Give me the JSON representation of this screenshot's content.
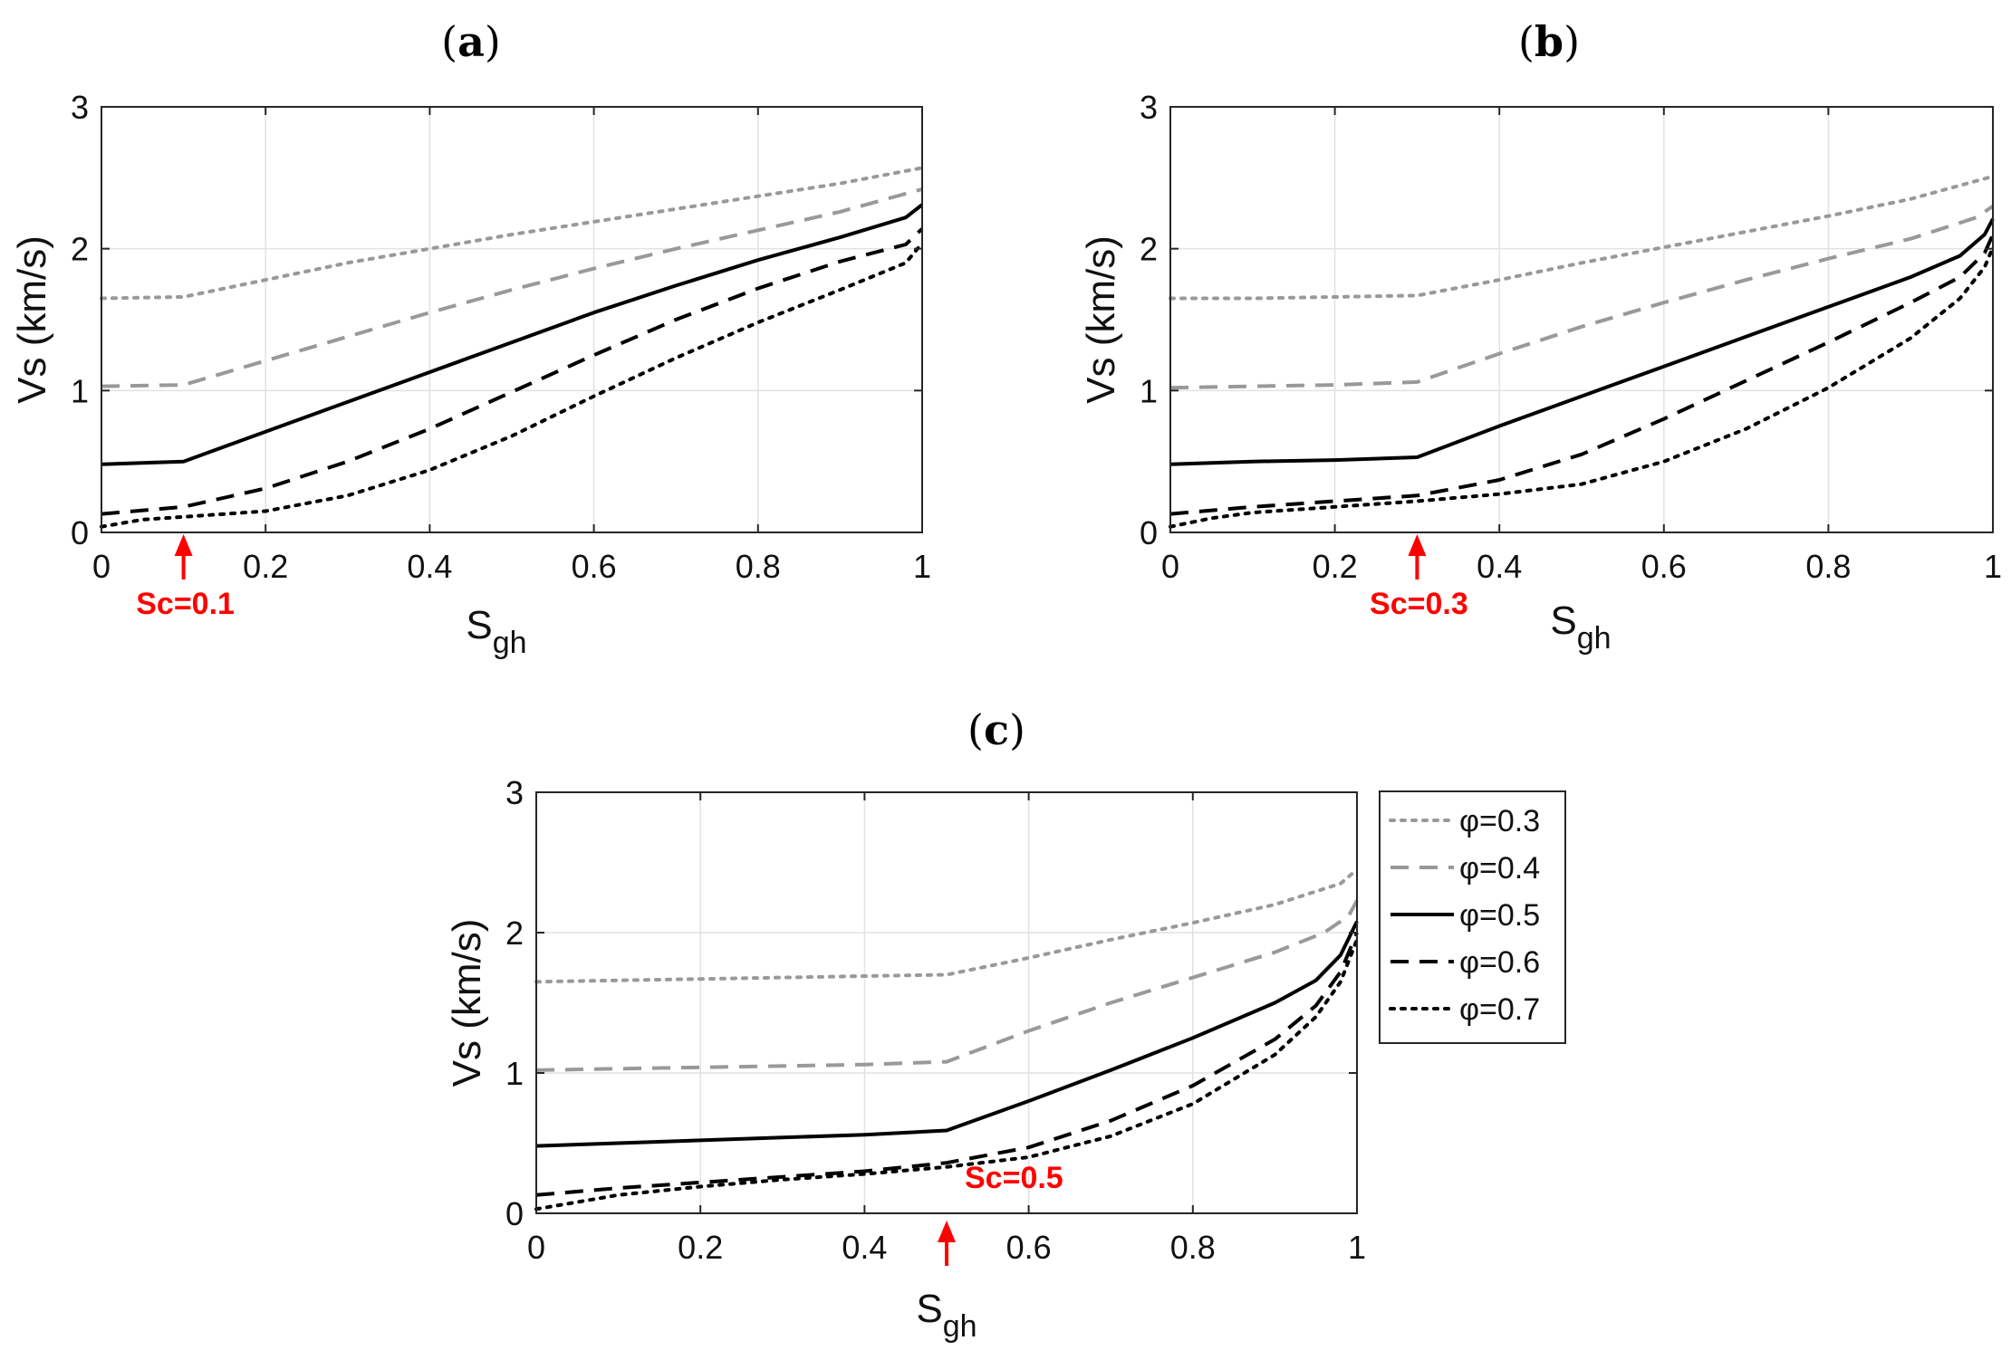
{
  "legend": {
    "entries": [
      {
        "label": "φ=0.3",
        "color": "#999999",
        "dash": "dot"
      },
      {
        "label": "φ=0.4",
        "color": "#999999",
        "dash": "dash"
      },
      {
        "label": "φ=0.5",
        "color": "#000000",
        "dash": "solid"
      },
      {
        "label": "φ=0.6",
        "color": "#000000",
        "dash": "dash"
      },
      {
        "label": "φ=0.7",
        "color": "#000000",
        "dash": "dot"
      }
    ]
  },
  "chart_data": [
    {
      "type": "line",
      "panel": "(a)",
      "panel_letter": "a",
      "xlabel_main": "S",
      "xlabel_sub": "gh",
      "ylabel": "Vs (km/s)",
      "xlim": [
        0,
        1
      ],
      "ylim": [
        0,
        3
      ],
      "xticks": [
        "0",
        "0.2",
        "0.4",
        "0.6",
        "0.8",
        "1"
      ],
      "xtick_values": [
        0,
        0.2,
        0.4,
        0.6,
        0.8,
        1
      ],
      "yticks": [
        "0",
        "1",
        "2",
        "3"
      ],
      "ytick_values": [
        0,
        1,
        2,
        3
      ],
      "grid": true,
      "annotation": {
        "text": "Sc=0.1",
        "x": 0.1
      },
      "series": [
        {
          "name": "φ=0.3",
          "x": [
            0,
            0.1,
            0.2,
            0.3,
            0.4,
            0.5,
            0.6,
            0.7,
            0.8,
            0.9,
            1.0
          ],
          "y": [
            1.65,
            1.66,
            1.78,
            1.9,
            2.0,
            2.1,
            2.19,
            2.28,
            2.37,
            2.46,
            2.57
          ]
        },
        {
          "name": "φ=0.4",
          "x": [
            0,
            0.1,
            0.2,
            0.3,
            0.4,
            0.5,
            0.6,
            0.7,
            0.8,
            0.9,
            1.0
          ],
          "y": [
            1.03,
            1.04,
            1.21,
            1.38,
            1.55,
            1.71,
            1.86,
            2.0,
            2.13,
            2.26,
            2.42
          ]
        },
        {
          "name": "φ=0.5",
          "x": [
            0,
            0.1,
            0.2,
            0.3,
            0.4,
            0.5,
            0.6,
            0.7,
            0.8,
            0.9,
            0.98,
            1.0
          ],
          "y": [
            0.48,
            0.5,
            0.71,
            0.92,
            1.13,
            1.34,
            1.55,
            1.74,
            1.92,
            2.08,
            2.22,
            2.31
          ]
        },
        {
          "name": "φ=0.6",
          "x": [
            0,
            0.1,
            0.2,
            0.3,
            0.4,
            0.5,
            0.6,
            0.7,
            0.8,
            0.9,
            0.98,
            1.0
          ],
          "y": [
            0.13,
            0.18,
            0.31,
            0.5,
            0.73,
            0.99,
            1.25,
            1.5,
            1.72,
            1.91,
            2.03,
            2.14
          ]
        },
        {
          "name": "φ=0.7",
          "x": [
            0,
            0.05,
            0.1,
            0.2,
            0.3,
            0.4,
            0.5,
            0.6,
            0.7,
            0.8,
            0.9,
            0.98,
            1.0
          ],
          "y": [
            0.04,
            0.09,
            0.11,
            0.15,
            0.26,
            0.44,
            0.68,
            0.96,
            1.23,
            1.48,
            1.71,
            1.9,
            2.04
          ]
        }
      ]
    },
    {
      "type": "line",
      "panel": "(b)",
      "panel_letter": "b",
      "xlabel_main": "S",
      "xlabel_sub": "gh",
      "ylabel": "Vs (km/s)",
      "xlim": [
        0,
        1
      ],
      "ylim": [
        0,
        3
      ],
      "xticks": [
        "0",
        "0.2",
        "0.4",
        "0.6",
        "0.8",
        "1"
      ],
      "xtick_values": [
        0,
        0.2,
        0.4,
        0.6,
        0.8,
        1
      ],
      "yticks": [
        "0",
        "1",
        "2",
        "3"
      ],
      "ytick_values": [
        0,
        1,
        2,
        3
      ],
      "grid": true,
      "annotation": {
        "text": "Sc=0.3",
        "x": 0.3
      },
      "series": [
        {
          "name": "φ=0.3",
          "x": [
            0,
            0.1,
            0.2,
            0.3,
            0.4,
            0.5,
            0.6,
            0.7,
            0.8,
            0.9,
            1.0
          ],
          "y": [
            1.65,
            1.65,
            1.66,
            1.67,
            1.78,
            1.9,
            2.01,
            2.12,
            2.23,
            2.35,
            2.51
          ]
        },
        {
          "name": "φ=0.4",
          "x": [
            0,
            0.1,
            0.2,
            0.3,
            0.4,
            0.5,
            0.6,
            0.7,
            0.8,
            0.9,
            0.98,
            1.0
          ],
          "y": [
            1.02,
            1.03,
            1.04,
            1.06,
            1.26,
            1.45,
            1.62,
            1.78,
            1.93,
            2.07,
            2.22,
            2.3
          ]
        },
        {
          "name": "φ=0.5",
          "x": [
            0,
            0.1,
            0.2,
            0.3,
            0.4,
            0.5,
            0.6,
            0.7,
            0.8,
            0.9,
            0.96,
            0.99,
            1.0
          ],
          "y": [
            0.48,
            0.5,
            0.51,
            0.53,
            0.75,
            0.96,
            1.17,
            1.38,
            1.59,
            1.8,
            1.95,
            2.1,
            2.21
          ]
        },
        {
          "name": "φ=0.6",
          "x": [
            0,
            0.1,
            0.2,
            0.3,
            0.4,
            0.5,
            0.6,
            0.7,
            0.8,
            0.9,
            0.96,
            0.99,
            1.0
          ],
          "y": [
            0.13,
            0.18,
            0.22,
            0.26,
            0.37,
            0.55,
            0.8,
            1.07,
            1.34,
            1.62,
            1.8,
            1.97,
            2.1
          ]
        },
        {
          "name": "φ=0.7",
          "x": [
            0,
            0.05,
            0.1,
            0.2,
            0.3,
            0.4,
            0.5,
            0.6,
            0.7,
            0.8,
            0.9,
            0.96,
            0.99,
            1.0
          ],
          "y": [
            0.04,
            0.1,
            0.14,
            0.18,
            0.22,
            0.27,
            0.34,
            0.5,
            0.73,
            1.02,
            1.37,
            1.65,
            1.87,
            2.01
          ]
        }
      ]
    },
    {
      "type": "line",
      "panel": "(c)",
      "panel_letter": "c",
      "xlabel_main": "S",
      "xlabel_sub": "gh",
      "ylabel": "Vs (km/s)",
      "xlim": [
        0,
        1
      ],
      "ylim": [
        0,
        3
      ],
      "xticks": [
        "0",
        "0.2",
        "0.4",
        "0.6",
        "0.8",
        "1"
      ],
      "xtick_values": [
        0,
        0.2,
        0.4,
        0.6,
        0.8,
        1
      ],
      "yticks": [
        "0",
        "1",
        "2",
        "3"
      ],
      "ytick_values": [
        0,
        1,
        2,
        3
      ],
      "grid": true,
      "annotation": {
        "text": "Sc=0.5",
        "x": 0.5
      },
      "series": [
        {
          "name": "φ=0.3",
          "x": [
            0,
            0.1,
            0.2,
            0.3,
            0.4,
            0.5,
            0.6,
            0.7,
            0.8,
            0.9,
            0.98,
            1.0
          ],
          "y": [
            1.65,
            1.66,
            1.67,
            1.68,
            1.69,
            1.7,
            1.82,
            1.95,
            2.07,
            2.2,
            2.35,
            2.45
          ]
        },
        {
          "name": "φ=0.4",
          "x": [
            0,
            0.1,
            0.2,
            0.3,
            0.4,
            0.5,
            0.6,
            0.7,
            0.8,
            0.9,
            0.96,
            0.99,
            1.0
          ],
          "y": [
            1.02,
            1.03,
            1.04,
            1.05,
            1.06,
            1.08,
            1.3,
            1.5,
            1.68,
            1.86,
            2.0,
            2.12,
            2.23
          ]
        },
        {
          "name": "φ=0.5",
          "x": [
            0,
            0.1,
            0.2,
            0.3,
            0.4,
            0.5,
            0.6,
            0.7,
            0.8,
            0.9,
            0.95,
            0.98,
            1.0
          ],
          "y": [
            0.48,
            0.5,
            0.52,
            0.54,
            0.56,
            0.59,
            0.8,
            1.02,
            1.25,
            1.5,
            1.66,
            1.84,
            2.08
          ]
        },
        {
          "name": "φ=0.6",
          "x": [
            0,
            0.1,
            0.2,
            0.3,
            0.4,
            0.5,
            0.6,
            0.7,
            0.8,
            0.9,
            0.95,
            0.98,
            1.0
          ],
          "y": [
            0.13,
            0.18,
            0.22,
            0.26,
            0.3,
            0.36,
            0.47,
            0.66,
            0.91,
            1.24,
            1.48,
            1.72,
            2.0
          ]
        },
        {
          "name": "φ=0.7",
          "x": [
            0,
            0.05,
            0.1,
            0.2,
            0.3,
            0.4,
            0.5,
            0.6,
            0.7,
            0.8,
            0.9,
            0.95,
            0.98,
            1.0
          ],
          "y": [
            0.03,
            0.08,
            0.13,
            0.19,
            0.24,
            0.28,
            0.33,
            0.4,
            0.55,
            0.78,
            1.13,
            1.4,
            1.65,
            1.95
          ]
        }
      ]
    }
  ]
}
